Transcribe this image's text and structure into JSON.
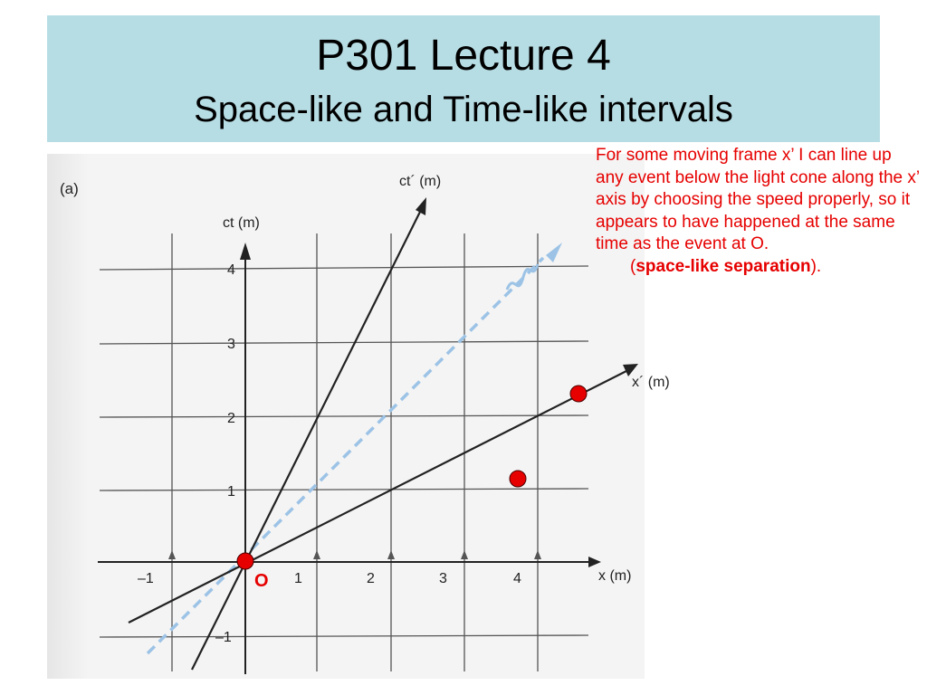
{
  "slide": {
    "title": "P301 Lecture 4",
    "subtitle": "Space-like and Time-like intervals"
  },
  "annotation": {
    "text": "For some moving frame x’ I can line up any event below the light cone along the x’ axis by choosing the speed properly, so it appears to have happened at the same time as the event at O.",
    "paren_open": "(",
    "bold": "space-like separation",
    "paren_close": ")."
  },
  "figure": {
    "panel_label": "(a)",
    "ct_axis_label": "ct (m)",
    "x_axis_label": "x (m)",
    "ct_prime_label": "ct´ (m)",
    "x_prime_label": "x´ (m)",
    "x_ticks": [
      "–1",
      "1",
      "2",
      "3",
      "4"
    ],
    "ct_ticks": [
      "4",
      "3",
      "2",
      "1",
      "–1"
    ],
    "origin_label": "O",
    "colors": {
      "event_fill": "#e60000",
      "light_line": "#9cc3e6",
      "grid": "#555555",
      "annotation": "#e60000",
      "title_band": "#b7dde4"
    },
    "events": [
      {
        "name": "O",
        "x": 0,
        "ct": 0
      },
      {
        "name": "event-on-x-prime-axis",
        "x": 4.5,
        "ct": 2.25
      },
      {
        "name": "event-below-light-cone",
        "x": 3.7,
        "ct": 1.1
      }
    ],
    "frame_speed_beta": 0.5
  }
}
